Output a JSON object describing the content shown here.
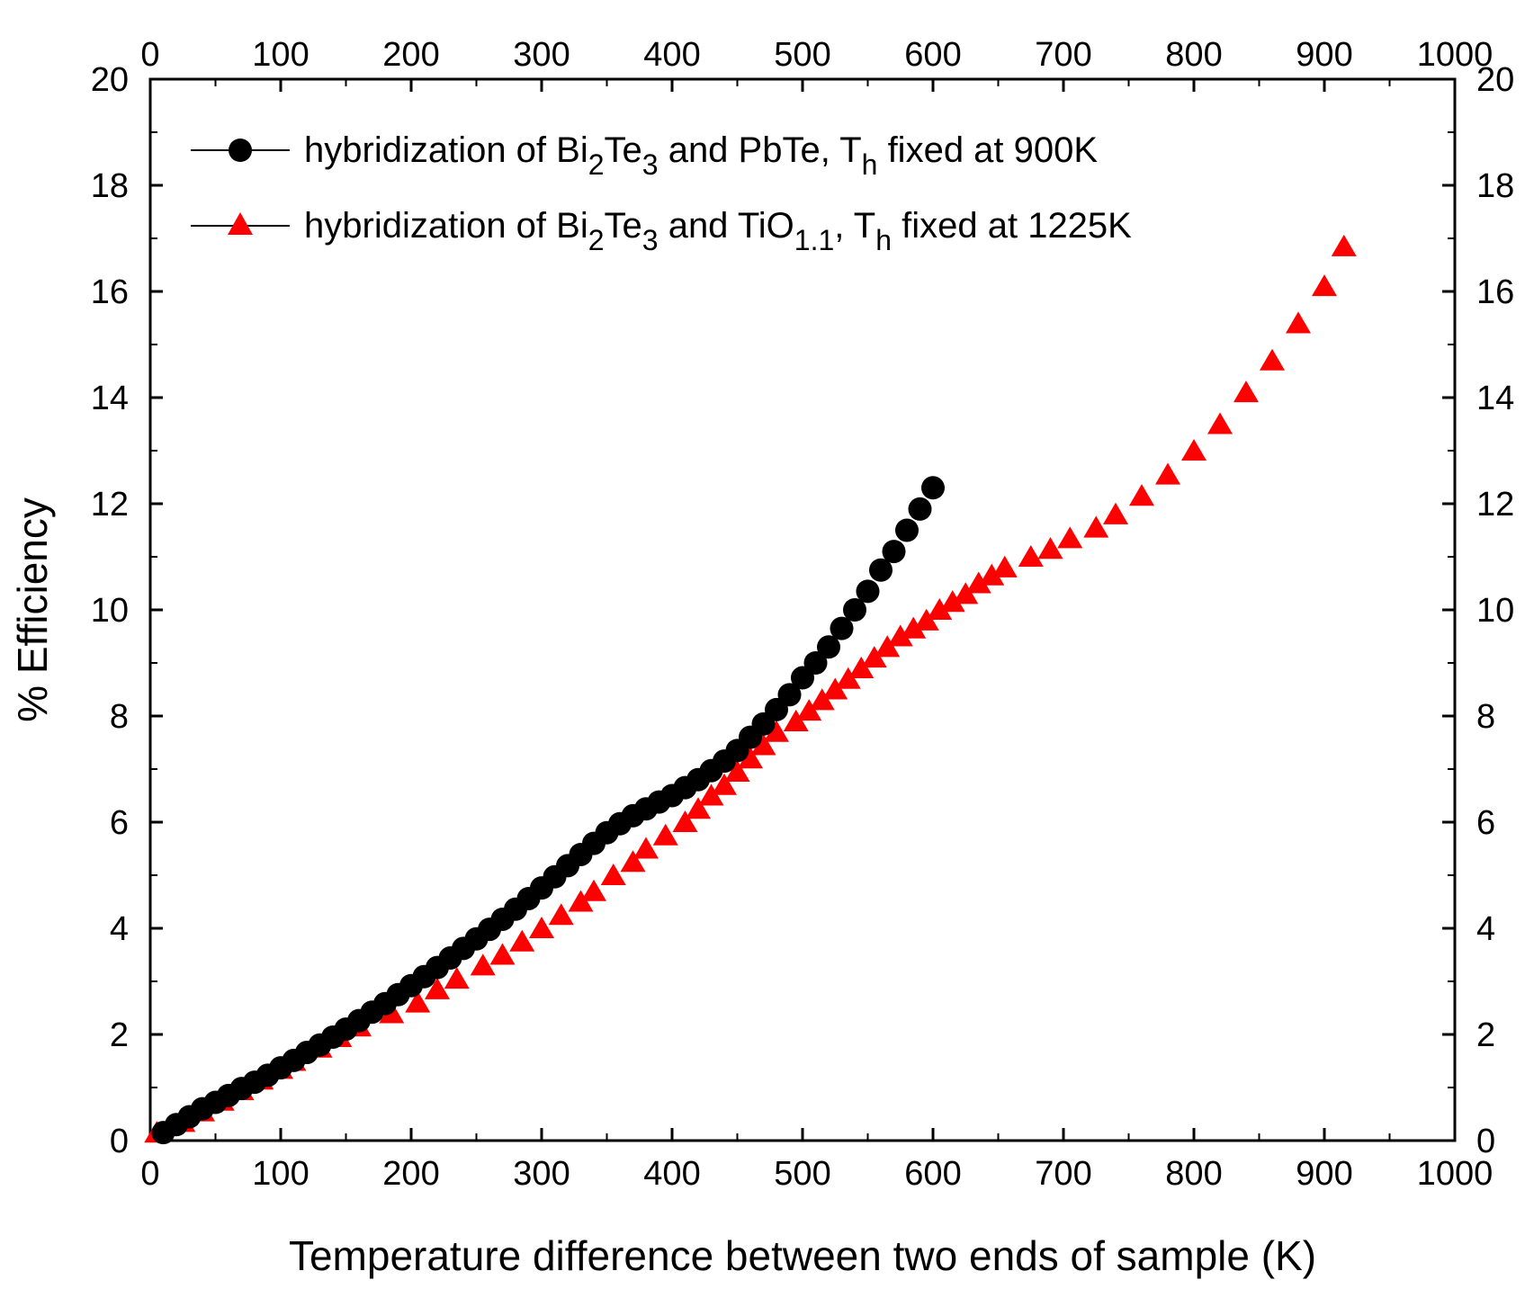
{
  "chart_data": {
    "type": "scatter",
    "xlabel": "Temperature difference between two ends of sample (K)",
    "ylabel": "% Efficiency",
    "xlim": [
      0,
      1000
    ],
    "ylim": [
      0,
      20
    ],
    "x_ticks": [
      "0",
      "100",
      "200",
      "300",
      "400",
      "500",
      "600",
      "700",
      "800",
      "900",
      "1000"
    ],
    "y_ticks": [
      "0",
      "2",
      "4",
      "6",
      "8",
      "10",
      "12",
      "14",
      "16",
      "18",
      "20"
    ],
    "top_axis": true,
    "right_axis": true,
    "legend_position": "top-left",
    "series": [
      {
        "name": "hybridization of Bi2Te3 and PbTe, Th fixed at 900K",
        "color": "#000000",
        "marker": "circle",
        "label_parts": {
          "p1": "hybridization of Bi",
          "s1": "2",
          "p2": "Te",
          "s2": "3",
          "p3": " and PbTe,  T",
          "s3": "h",
          "p4": " fixed at 900K"
        },
        "points": [
          [
            10,
            0.15
          ],
          [
            20,
            0.3
          ],
          [
            30,
            0.45
          ],
          [
            40,
            0.6
          ],
          [
            50,
            0.72
          ],
          [
            60,
            0.85
          ],
          [
            70,
            0.98
          ],
          [
            80,
            1.1
          ],
          [
            90,
            1.23
          ],
          [
            100,
            1.37
          ],
          [
            110,
            1.51
          ],
          [
            120,
            1.66
          ],
          [
            130,
            1.8
          ],
          [
            140,
            1.95
          ],
          [
            150,
            2.1
          ],
          [
            160,
            2.26
          ],
          [
            170,
            2.42
          ],
          [
            180,
            2.58
          ],
          [
            190,
            2.75
          ],
          [
            200,
            2.92
          ],
          [
            210,
            3.09
          ],
          [
            220,
            3.26
          ],
          [
            230,
            3.44
          ],
          [
            240,
            3.62
          ],
          [
            250,
            3.8
          ],
          [
            260,
            3.98
          ],
          [
            270,
            4.17
          ],
          [
            280,
            4.36
          ],
          [
            290,
            4.56
          ],
          [
            300,
            4.76
          ],
          [
            310,
            4.97
          ],
          [
            320,
            5.18
          ],
          [
            330,
            5.39
          ],
          [
            340,
            5.6
          ],
          [
            350,
            5.8
          ],
          [
            360,
            5.97
          ],
          [
            370,
            6.12
          ],
          [
            380,
            6.25
          ],
          [
            390,
            6.38
          ],
          [
            400,
            6.5
          ],
          [
            410,
            6.65
          ],
          [
            420,
            6.8
          ],
          [
            430,
            6.97
          ],
          [
            440,
            7.15
          ],
          [
            450,
            7.35
          ],
          [
            460,
            7.6
          ],
          [
            470,
            7.85
          ],
          [
            480,
            8.12
          ],
          [
            490,
            8.4
          ],
          [
            500,
            8.72
          ],
          [
            510,
            9.0
          ],
          [
            520,
            9.3
          ],
          [
            530,
            9.65
          ],
          [
            540,
            10.0
          ],
          [
            550,
            10.35
          ],
          [
            560,
            10.75
          ],
          [
            570,
            11.1
          ],
          [
            580,
            11.5
          ],
          [
            590,
            11.9
          ],
          [
            600,
            12.3
          ]
        ]
      },
      {
        "name": "hybridization of Bi2Te3 and TiO1.1, Th fixed at 1225K",
        "color": "#ff0000",
        "marker": "triangle",
        "label_parts": {
          "p1": "hybridization of Bi",
          "s1": "2",
          "p2": "Te",
          "s2": "3",
          "p3": " and TiO",
          "s3": "1.1",
          "p4": ",  T",
          "s4": "h",
          "p5": " fixed at 1225K"
        },
        "points": [
          [
            5,
            0.15
          ],
          [
            25,
            0.35
          ],
          [
            40,
            0.55
          ],
          [
            55,
            0.75
          ],
          [
            70,
            0.95
          ],
          [
            85,
            1.15
          ],
          [
            100,
            1.35
          ],
          [
            110,
            1.5
          ],
          [
            130,
            1.75
          ],
          [
            145,
            1.95
          ],
          [
            160,
            2.15
          ],
          [
            185,
            2.4
          ],
          [
            205,
            2.6
          ],
          [
            220,
            2.85
          ],
          [
            235,
            3.05
          ],
          [
            255,
            3.3
          ],
          [
            270,
            3.5
          ],
          [
            285,
            3.75
          ],
          [
            300,
            4.0
          ],
          [
            315,
            4.25
          ],
          [
            330,
            4.5
          ],
          [
            340,
            4.7
          ],
          [
            355,
            5.0
          ],
          [
            370,
            5.25
          ],
          [
            380,
            5.5
          ],
          [
            395,
            5.75
          ],
          [
            410,
            6.0
          ],
          [
            420,
            6.25
          ],
          [
            430,
            6.5
          ],
          [
            440,
            6.7
          ],
          [
            450,
            6.95
          ],
          [
            460,
            7.2
          ],
          [
            470,
            7.45
          ],
          [
            480,
            7.7
          ],
          [
            495,
            7.9
          ],
          [
            505,
            8.1
          ],
          [
            515,
            8.3
          ],
          [
            525,
            8.5
          ],
          [
            535,
            8.7
          ],
          [
            545,
            8.9
          ],
          [
            555,
            9.1
          ],
          [
            565,
            9.3
          ],
          [
            575,
            9.5
          ],
          [
            585,
            9.65
          ],
          [
            595,
            9.8
          ],
          [
            605,
            10.0
          ],
          [
            615,
            10.15
          ],
          [
            625,
            10.3
          ],
          [
            635,
            10.5
          ],
          [
            645,
            10.65
          ],
          [
            655,
            10.8
          ],
          [
            675,
            11.0
          ],
          [
            690,
            11.15
          ],
          [
            705,
            11.35
          ],
          [
            725,
            11.55
          ],
          [
            740,
            11.8
          ],
          [
            760,
            12.15
          ],
          [
            780,
            12.55
          ],
          [
            800,
            13.0
          ],
          [
            820,
            13.5
          ],
          [
            840,
            14.1
          ],
          [
            860,
            14.7
          ],
          [
            880,
            15.4
          ],
          [
            900,
            16.1
          ],
          [
            915,
            16.85
          ]
        ]
      }
    ]
  }
}
